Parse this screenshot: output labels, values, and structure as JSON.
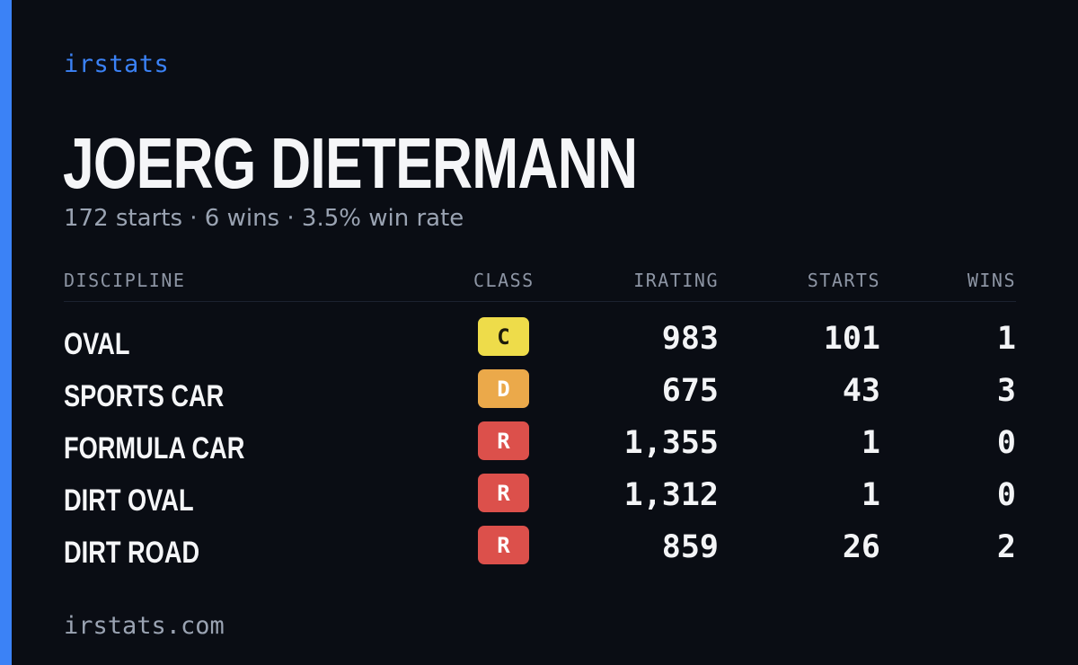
{
  "colors": {
    "background": "#0a0d14",
    "accent": "#3b82f6",
    "text_primary": "#f3f4f6",
    "text_muted": "#9aa3b2",
    "class_C": "#eedc4a",
    "class_D": "#eba94a",
    "class_R": "#dc504b"
  },
  "brand": "irstats",
  "driver": {
    "name": "JOERG DIETERMANN",
    "summary": "172 starts · 6 wins · 3.5% win rate"
  },
  "table": {
    "headers": {
      "discipline": "DISCIPLINE",
      "class": "CLASS",
      "irating": "IRATING",
      "starts": "STARTS",
      "wins": "WINS"
    },
    "rows": [
      {
        "discipline": "OVAL",
        "class": "C",
        "class_color": "#eedc4a",
        "class_text_color": "#1c1a0a",
        "irating": "983",
        "starts": "101",
        "wins": "1"
      },
      {
        "discipline": "SPORTS CAR",
        "class": "D",
        "class_color": "#eba94a",
        "class_text_color": "#ffffff",
        "irating": "675",
        "starts": "43",
        "wins": "3"
      },
      {
        "discipline": "FORMULA CAR",
        "class": "R",
        "class_color": "#dc504b",
        "class_text_color": "#ffffff",
        "irating": "1,355",
        "starts": "1",
        "wins": "0"
      },
      {
        "discipline": "DIRT OVAL",
        "class": "R",
        "class_color": "#dc504b",
        "class_text_color": "#ffffff",
        "irating": "1,312",
        "starts": "1",
        "wins": "0"
      },
      {
        "discipline": "DIRT ROAD",
        "class": "R",
        "class_color": "#dc504b",
        "class_text_color": "#ffffff",
        "irating": "859",
        "starts": "26",
        "wins": "2"
      }
    ]
  },
  "footer": "irstats.com"
}
